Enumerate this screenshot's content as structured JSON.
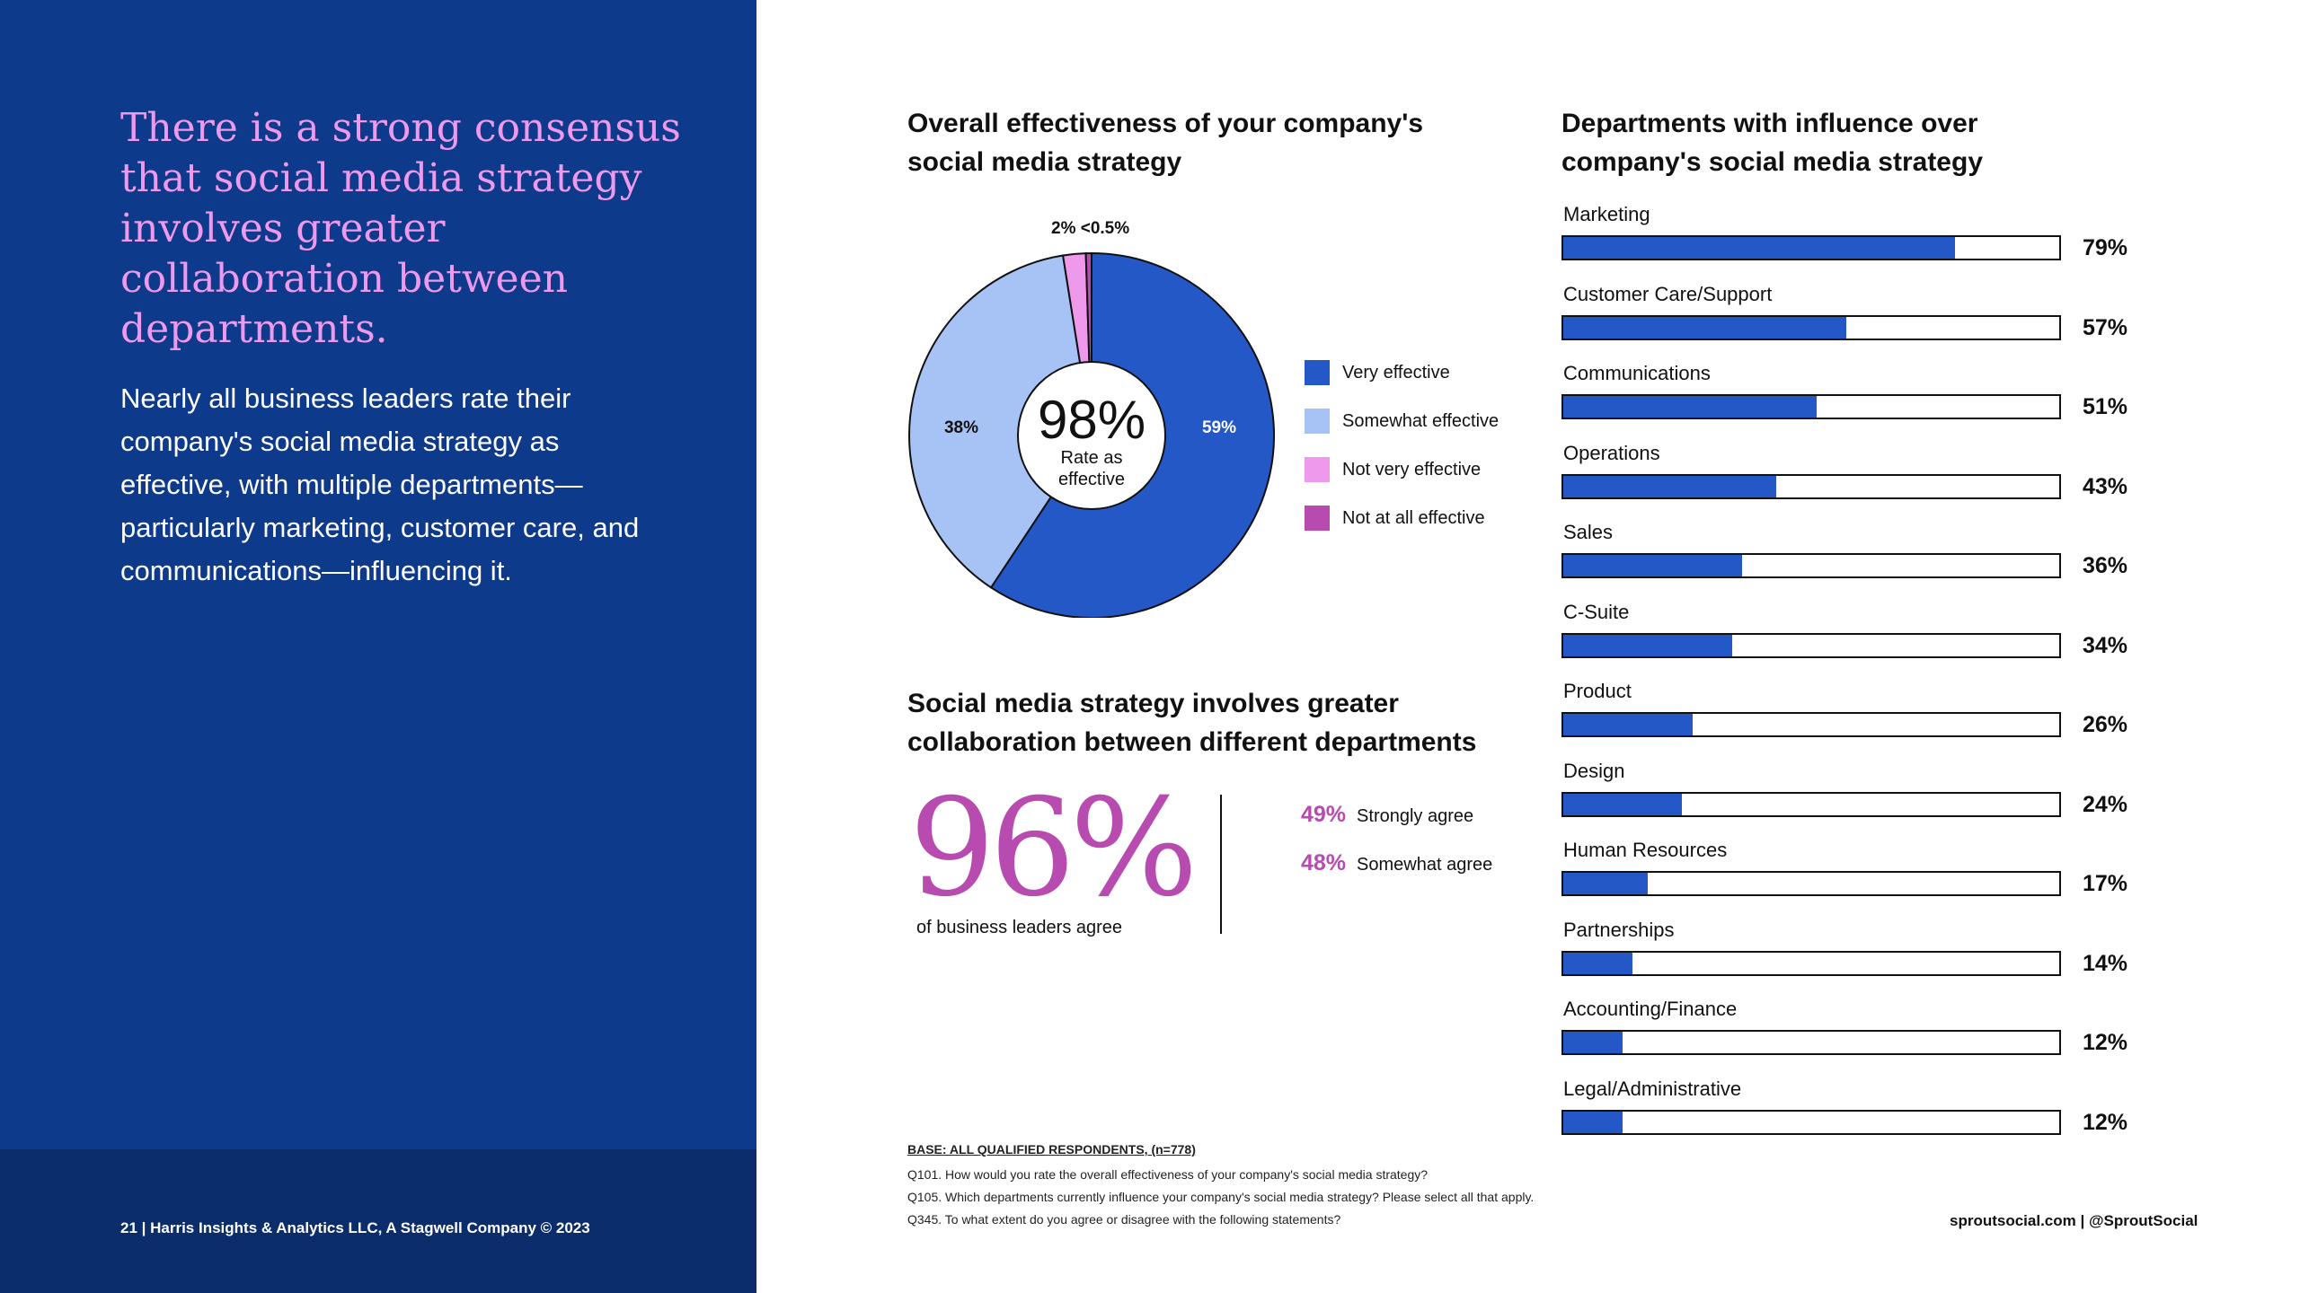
{
  "left": {
    "headline": "There is a strong consensus that social media strategy involves greater collaboration between departments.",
    "body": "Nearly all business leaders rate their company's social media strategy as effective, with multiple departments—particularly marketing, customer care, and communications—influencing it.",
    "footer": "21  |  Harris Insights & Analytics LLC, A Stagwell Company © 2023"
  },
  "pie_section": {
    "title_line1": "Overall effectiveness of your company's",
    "title_line2": "social media strategy",
    "center_value": "98%",
    "center_label_line1": "Rate as",
    "center_label_line2": "effective",
    "label_59": "59%",
    "label_38": "38%",
    "label_top": "2% <0.5%"
  },
  "collab_section": {
    "title_line1": "Social media strategy involves greater",
    "title_line2": "collaboration between different departments",
    "big_value": "96%",
    "big_caption": "of business leaders agree",
    "strongly_pct": "49%",
    "strongly_label": "Strongly agree",
    "somewhat_pct": "48%",
    "somewhat_label": "Somewhat agree"
  },
  "dept_section": {
    "title_line1": "Departments with influence over",
    "title_line2": "company's social media strategy"
  },
  "footnotes": {
    "base": "BASE: ALL QUALIFIED RESPONDENTS, (n=778)",
    "q1": "Q101. How would you rate the overall effectiveness of your company's social media strategy?",
    "q2": "Q105. Which departments currently influence your company's social media strategy? Please select all that apply.",
    "q3": "Q345. To what extent do you agree or disagree with the following statements?"
  },
  "footer_right": "sproutsocial.com   |   @SproutSocial",
  "chart_data": [
    {
      "type": "pie",
      "title": "Overall effectiveness of your company's social media strategy",
      "categories": [
        "Very effective",
        "Somewhat effective",
        "Not very effective",
        "Not at all effective"
      ],
      "values": [
        59,
        38,
        2,
        0.5
      ],
      "value_labels": [
        "59%",
        "38%",
        "2%",
        "<0.5%"
      ],
      "colors": [
        "#2458c6",
        "#a7c3f5",
        "#ef99ec",
        "#b84bb0"
      ],
      "center_text": "98% Rate as effective",
      "legend_position": "right"
    },
    {
      "type": "bar",
      "orientation": "horizontal",
      "title": "Departments with influence over company's social media strategy",
      "categories": [
        "Marketing",
        "Customer Care/Support",
        "Communications",
        "Operations",
        "Sales",
        "C-Suite",
        "Product",
        "Design",
        "Human Resources",
        "Partnerships",
        "Accounting/Finance",
        "Legal/Administrative"
      ],
      "values": [
        79,
        57,
        51,
        43,
        36,
        34,
        26,
        24,
        17,
        14,
        12,
        12
      ],
      "value_labels": [
        "79%",
        "57%",
        "51%",
        "43%",
        "36%",
        "34%",
        "26%",
        "24%",
        "17%",
        "14%",
        "12%",
        "12%"
      ],
      "xlim": [
        0,
        100
      ],
      "color": "#2458c6"
    }
  ]
}
